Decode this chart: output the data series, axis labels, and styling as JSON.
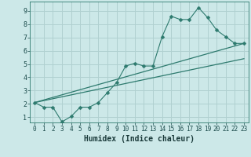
{
  "xlabel": "Humidex (Indice chaleur)",
  "bg_color": "#cce8e8",
  "grid_color": "#b0d0d0",
  "line_color": "#2d7a6e",
  "xlim": [
    -0.5,
    23.5
  ],
  "ylim": [
    0.6,
    9.7
  ],
  "xticks": [
    0,
    1,
    2,
    3,
    4,
    5,
    6,
    7,
    8,
    9,
    10,
    11,
    12,
    13,
    14,
    15,
    16,
    17,
    18,
    19,
    20,
    21,
    22,
    23
  ],
  "yticks": [
    1,
    2,
    3,
    4,
    5,
    6,
    7,
    8,
    9
  ],
  "line1_x": [
    0,
    1,
    2,
    3,
    4,
    5,
    6,
    7,
    8,
    9,
    10,
    11,
    12,
    13,
    14,
    15,
    16,
    17,
    18,
    19,
    20,
    21,
    22,
    23
  ],
  "line1_y": [
    2.1,
    1.75,
    1.75,
    0.65,
    1.05,
    1.75,
    1.75,
    2.1,
    2.85,
    3.6,
    4.85,
    5.05,
    4.85,
    4.85,
    7.05,
    8.6,
    8.35,
    8.35,
    9.25,
    8.5,
    7.55,
    7.05,
    6.55,
    6.55
  ],
  "line2_x": [
    0,
    23
  ],
  "line2_y": [
    2.1,
    6.55
  ],
  "line3_x": [
    0,
    23
  ],
  "line3_y": [
    2.1,
    5.4
  ]
}
